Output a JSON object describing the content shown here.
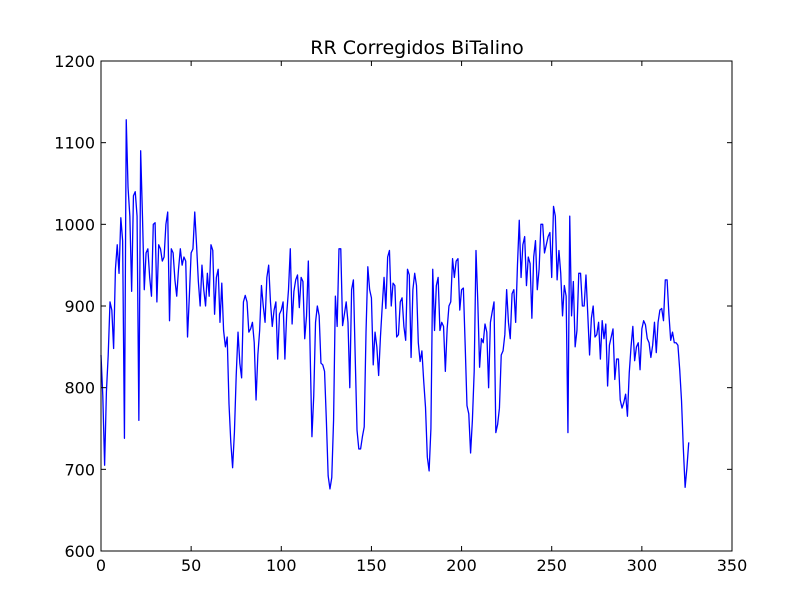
{
  "chart_data": {
    "type": "line",
    "title": "RR Corregidos BiTalino",
    "xlabel": "",
    "ylabel": "",
    "xlim": [
      0,
      350
    ],
    "ylim": [
      600,
      1200
    ],
    "xticks": [
      0,
      50,
      100,
      150,
      200,
      250,
      300,
      350
    ],
    "yticks": [
      600,
      700,
      800,
      900,
      1000,
      1100,
      1200
    ],
    "grid": false,
    "legend": "none",
    "series": [
      {
        "color": "#0000ff",
        "x_start": 0,
        "x_step": 1,
        "values": [
          840,
          790,
          705,
          795,
          840,
          905,
          895,
          848,
          945,
          975,
          940,
          1008,
          980,
          738,
          1128,
          1045,
          1010,
          918,
          1035,
          1040,
          1010,
          760,
          1090,
          1010,
          920,
          965,
          970,
          935,
          912,
          1000,
          1002,
          905,
          975,
          970,
          955,
          960,
          1000,
          1015,
          882,
          970,
          965,
          932,
          912,
          945,
          970,
          950,
          960,
          955,
          862,
          912,
          965,
          970,
          1015,
          975,
          930,
          900,
          950,
          920,
          900,
          940,
          912,
          975,
          968,
          890,
          935,
          945,
          880,
          928,
          870,
          850,
          862,
          780,
          733,
          702,
          745,
          815,
          868,
          830,
          812,
          905,
          913,
          905,
          868,
          872,
          880,
          855,
          785,
          840,
          870,
          925,
          900,
          880,
          935,
          950,
          905,
          875,
          895,
          905,
          835,
          890,
          895,
          905,
          835,
          890,
          920,
          970,
          878,
          918,
          932,
          938,
          898,
          935,
          930,
          860,
          888,
          955,
          845,
          740,
          790,
          880,
          900,
          888,
          830,
          828,
          820,
          760,
          692,
          676,
          690,
          760,
          912,
          875,
          970,
          970,
          876,
          890,
          905,
          880,
          800,
          920,
          932,
          838,
          748,
          725,
          725,
          740,
          752,
          868,
          948,
          920,
          910,
          828,
          868,
          850,
          815,
          862,
          900,
          935,
          897,
          960,
          968,
          900,
          928,
          925,
          862,
          865,
          905,
          910,
          875,
          858,
          945,
          938,
          837,
          920,
          940,
          925,
          855,
          832,
          845,
          808,
          776,
          715,
          698,
          750,
          945,
          870,
          925,
          935,
          870,
          880,
          875,
          820,
          872,
          900,
          905,
          958,
          935,
          955,
          958,
          895,
          920,
          922,
          852,
          778,
          768,
          720,
          760,
          820,
          968,
          905,
          825,
          860,
          855,
          878,
          868,
          800,
          880,
          893,
          905,
          745,
          755,
          775,
          840,
          845,
          865,
          920,
          880,
          860,
          915,
          920,
          880,
          950,
          1005,
          935,
          975,
          985,
          925,
          960,
          952,
          885,
          960,
          980,
          920,
          945,
          1000,
          1000,
          965,
          975,
          985,
          990,
          935,
          1022,
          1010,
          932,
          968,
          940,
          888,
          925,
          912,
          745,
          1010,
          888,
          930,
          850,
          870,
          940,
          940,
          900,
          900,
          938,
          890,
          840,
          885,
          900,
          862,
          865,
          880,
          835,
          882,
          860,
          878,
          802,
          852,
          862,
          872,
          810,
          835,
          835,
          785,
          775,
          782,
          792,
          765,
          818,
          850,
          875,
          833,
          850,
          855,
          822,
          872,
          882,
          877,
          860,
          855,
          837,
          852,
          880,
          843,
          880,
          895,
          897,
          882,
          932,
          932,
          890,
          858,
          868,
          855,
          855,
          852,
          822,
          784,
          726,
          678,
          702,
          733
        ]
      }
    ]
  }
}
